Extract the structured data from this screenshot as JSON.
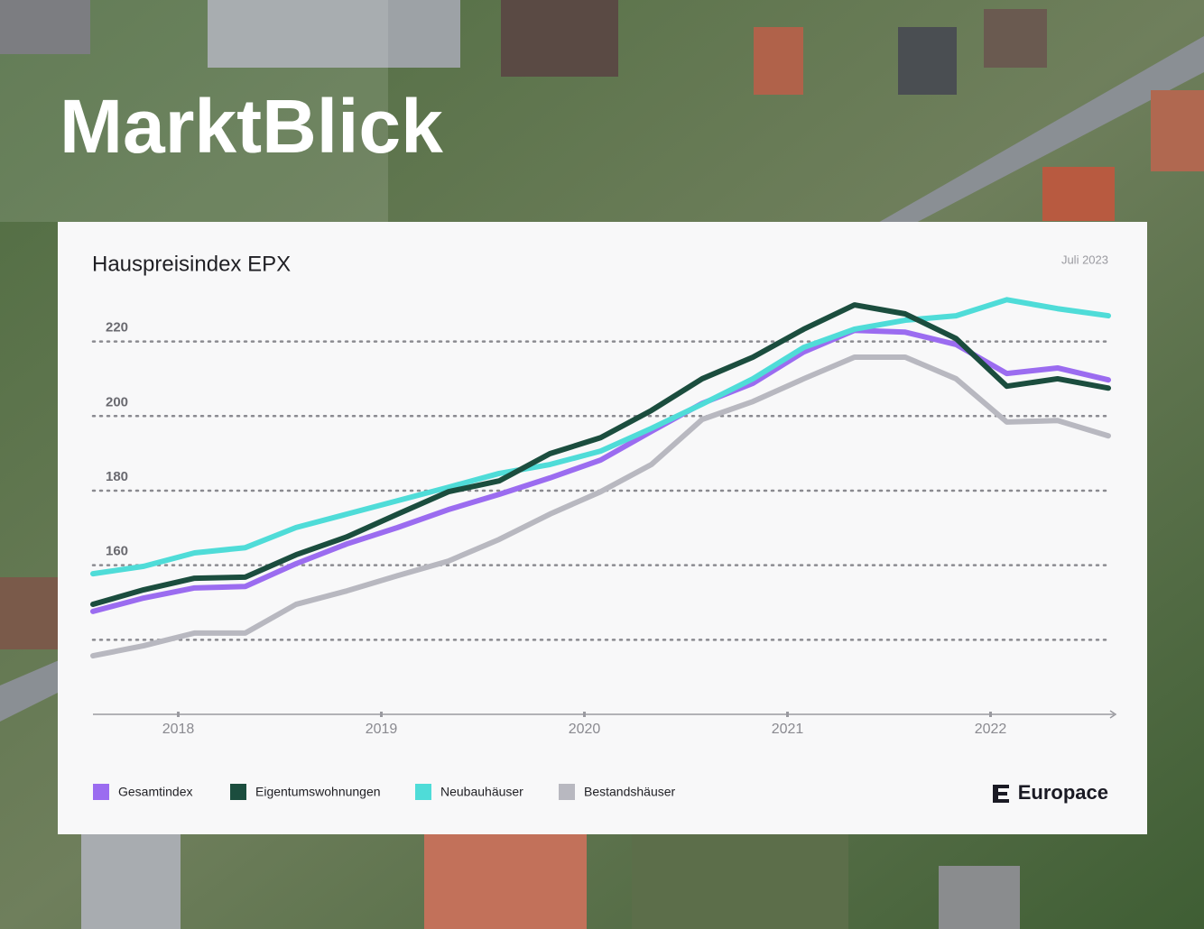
{
  "header": {
    "brand": "MarktBlick"
  },
  "chart_data": {
    "type": "line",
    "title": "Hauspreisindex EPX",
    "subtitle": "Juli 2023",
    "x": [
      2017.58,
      2017.83,
      2018.08,
      2018.33,
      2018.58,
      2018.83,
      2019.08,
      2019.33,
      2019.58,
      2019.83,
      2020.08,
      2020.33,
      2020.58,
      2020.83,
      2021.08,
      2021.33,
      2021.58,
      2021.83,
      2022.08,
      2022.33,
      2022.58
    ],
    "xlim": [
      2017.58,
      2022.58
    ],
    "xticks": [
      2018,
      2019,
      2020,
      2021,
      2022
    ],
    "ylim": [
      120,
      232
    ],
    "yticks": [
      {
        "value": 140,
        "label": null
      },
      160,
      180,
      200,
      220
    ],
    "grid": true,
    "series": [
      {
        "name": "Gesamtindex",
        "color": "#9b6cf0",
        "values": [
          147.6,
          151.2,
          153.9,
          154.3,
          160.4,
          165.7,
          170.1,
          174.9,
          179.0,
          183.4,
          188.2,
          195.9,
          203.4,
          208.8,
          217.2,
          223.0,
          222.5,
          219.2,
          211.4,
          212.9,
          209.7
        ]
      },
      {
        "name": "Eigentumswohnungen",
        "color": "#1b4d3e",
        "values": [
          149.5,
          153.4,
          156.5,
          156.8,
          162.8,
          167.6,
          173.7,
          179.7,
          182.6,
          189.9,
          194.2,
          201.5,
          210.0,
          215.8,
          223.3,
          229.8,
          227.4,
          220.8,
          208.0,
          210.0,
          207.5
        ]
      },
      {
        "name": "Neubauhäuser",
        "color": "#4fdcd8",
        "values": [
          157.7,
          159.7,
          163.3,
          164.7,
          170.1,
          173.7,
          177.3,
          180.9,
          184.6,
          187.0,
          190.6,
          196.7,
          203.2,
          210.0,
          218.4,
          223.3,
          225.7,
          226.9,
          231.2,
          228.8,
          226.9
        ]
      },
      {
        "name": "Bestandshäuser",
        "color": "#b8b8c0",
        "values": [
          135.7,
          138.4,
          141.8,
          141.8,
          149.5,
          153.1,
          157.2,
          161.1,
          166.9,
          173.7,
          179.7,
          187.0,
          199.1,
          203.9,
          210.0,
          215.8,
          215.8,
          210.0,
          198.4,
          198.8,
          194.7
        ]
      }
    ]
  },
  "footer": {
    "logo": "Europace"
  }
}
